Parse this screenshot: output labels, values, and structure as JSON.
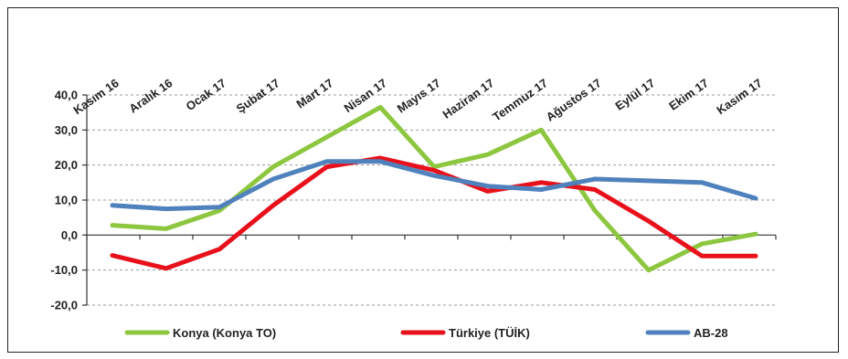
{
  "chart_data": {
    "type": "line",
    "categories": [
      "Kasım 16",
      "Aralık 16",
      "Ocak 17",
      "Şubat 17",
      "Mart 17",
      "Nisan 17",
      "Mayıs 17",
      "Haziran 17",
      "Temmuz 17",
      "Ağustos 17",
      "Eylül 17",
      "Ekim 17",
      "Kasım 17"
    ],
    "ylim": [
      -20,
      40
    ],
    "yticks": [
      -20,
      -10,
      0,
      10,
      20,
      30,
      40
    ],
    "ytick_labels": [
      "-20,0",
      "-10,0",
      "0,0",
      "10,0",
      "20,0",
      "30,0",
      "40,0"
    ],
    "grid": true,
    "legend_position": "bottom",
    "series": [
      {
        "name": "Konya (Konya TO)",
        "color": "#8DC63F",
        "values": [
          2.8,
          1.8,
          7.0,
          19.5,
          28.0,
          36.5,
          19.5,
          23.0,
          30.0,
          7.0,
          -10.0,
          -2.5,
          0.3
        ]
      },
      {
        "name": "Türkiye (TÜİK)",
        "color": "#E8111B",
        "values": [
          -5.8,
          -9.5,
          -4.0,
          8.5,
          19.5,
          22.0,
          18.5,
          12.5,
          15.0,
          13.0,
          4.0,
          -6.0,
          -6.0
        ]
      },
      {
        "name": "AB-28",
        "color": "#4F81BD",
        "values": [
          8.5,
          7.5,
          8.0,
          16.0,
          21.0,
          21.0,
          17.0,
          14.0,
          13.0,
          16.0,
          15.5,
          15.0,
          10.5
        ]
      }
    ]
  }
}
